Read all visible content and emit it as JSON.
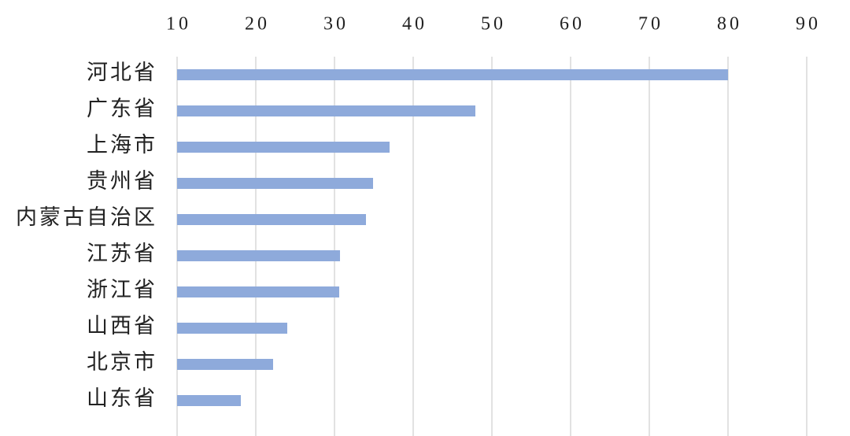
{
  "chart_data": {
    "type": "bar",
    "orientation": "horizontal",
    "categories": [
      "河北省",
      "广东省",
      "上海市",
      "贵州省",
      "内蒙古自治区",
      "江苏省",
      "浙江省",
      "山西省",
      "北京市",
      "山东省"
    ],
    "values": [
      80,
      47.9,
      37,
      34.9,
      34,
      30.7,
      30.6,
      24,
      22.2,
      18.1
    ],
    "color": "#8eaadb",
    "xlim": [
      10,
      90
    ],
    "xticks": [
      10,
      20,
      30,
      40,
      50,
      60,
      70,
      80,
      90
    ],
    "grid": true
  }
}
